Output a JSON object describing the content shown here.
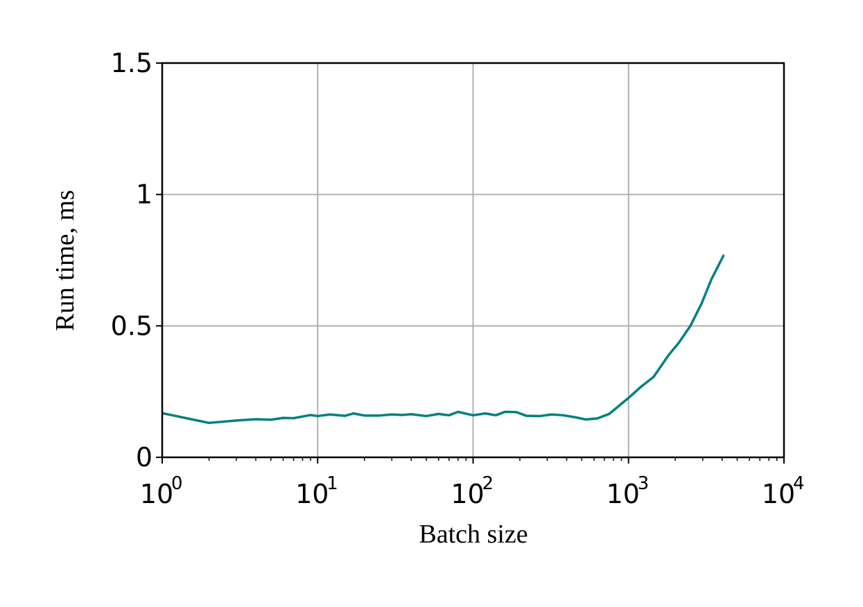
{
  "chart_data": {
    "type": "line",
    "title": "",
    "xlabel": "Batch size",
    "ylabel": "Run time, ms",
    "xscale": "log",
    "xlim": [
      1,
      10000
    ],
    "ylim": [
      0,
      1.5
    ],
    "grid": true,
    "legend": "none",
    "x_ticks": [
      {
        "base": "10",
        "exp": "0"
      },
      {
        "base": "10",
        "exp": "1"
      },
      {
        "base": "10",
        "exp": "2"
      },
      {
        "base": "10",
        "exp": "3"
      },
      {
        "base": "10",
        "exp": "4"
      }
    ],
    "y_ticks": [
      {
        "value": 0,
        "label": "0"
      },
      {
        "value": 0.5,
        "label": "0.5"
      },
      {
        "value": 1,
        "label": "1"
      },
      {
        "value": 1.5,
        "label": "1.5"
      }
    ],
    "series": [
      {
        "color": "#008080",
        "x": [
          1,
          2,
          3,
          4,
          5,
          6,
          7,
          9,
          10,
          12,
          15,
          17,
          20,
          25,
          30,
          35,
          40,
          50,
          60,
          70,
          80,
          100,
          120,
          140,
          160,
          190,
          220,
          270,
          320,
          380,
          450,
          530,
          630,
          750,
          1000,
          1200,
          1450,
          1800,
          2100,
          2500,
          2950,
          3400,
          4100
        ],
        "y": [
          0.168,
          0.131,
          0.14,
          0.145,
          0.143,
          0.15,
          0.149,
          0.161,
          0.157,
          0.163,
          0.158,
          0.167,
          0.159,
          0.159,
          0.163,
          0.161,
          0.164,
          0.157,
          0.165,
          0.16,
          0.173,
          0.16,
          0.167,
          0.16,
          0.173,
          0.172,
          0.158,
          0.157,
          0.163,
          0.16,
          0.153,
          0.144,
          0.148,
          0.165,
          0.226,
          0.268,
          0.306,
          0.387,
          0.435,
          0.5,
          0.585,
          0.675,
          0.77
        ]
      }
    ]
  }
}
